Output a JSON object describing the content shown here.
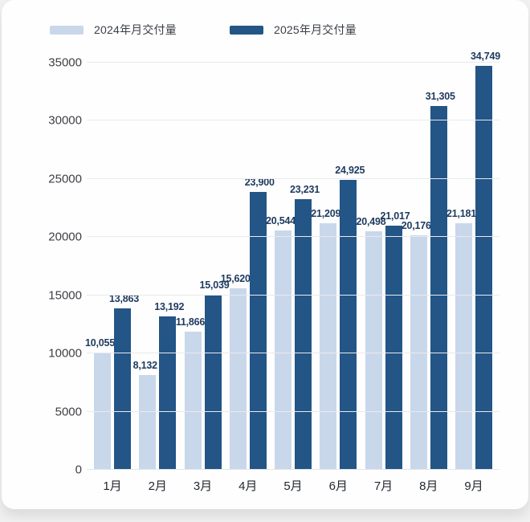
{
  "chart_data": {
    "type": "bar",
    "title": "",
    "xlabel": "",
    "ylabel": "",
    "categories": [
      "1月",
      "2月",
      "3月",
      "4月",
      "5月",
      "6月",
      "7月",
      "8月",
      "9月"
    ],
    "series": [
      {
        "name": "2024年月交付量",
        "color": "#c9d7eb",
        "values": [
          10055,
          8132,
          11866,
          15620,
          20544,
          21209,
          20498,
          20176,
          21181
        ]
      },
      {
        "name": "2025年月交付量",
        "color": "#235586",
        "values": [
          13863,
          13192,
          15039,
          23900,
          23231,
          24925,
          21017,
          31305,
          34749
        ]
      }
    ],
    "ylim": [
      0,
      35000
    ],
    "yticks": [
      0,
      5000,
      10000,
      15000,
      20000,
      25000,
      30000,
      35000
    ],
    "grid": true,
    "value_labels": true,
    "legend_position": "top-left",
    "value_label_color": "#1d3a5f",
    "axis_text_color": "#3d3f44",
    "gridline_color": "#e9eaec",
    "background_color": "#fefefe"
  }
}
